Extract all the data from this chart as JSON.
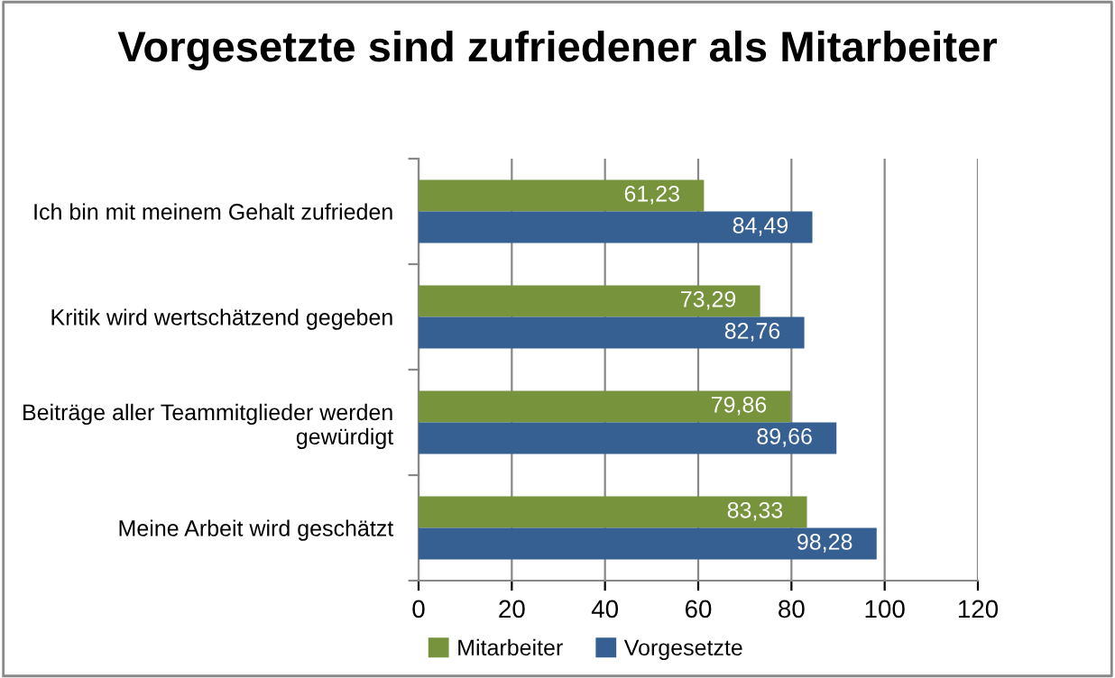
{
  "chart_data": {
    "type": "bar",
    "orientation": "horizontal",
    "title": "Vorgesetzte sind zufriedener als Mitarbeiter",
    "categories": [
      "Ich bin mit meinem Gehalt zufrieden",
      "Kritik wird wertschätzend gegeben",
      "Beiträge aller Teammitglieder werden\ngewürdigt",
      "Meine Arbeit wird geschätzt"
    ],
    "series": [
      {
        "name": "Mitarbeiter",
        "color": "#77933c",
        "values": [
          61.23,
          73.29,
          79.86,
          83.33
        ],
        "value_labels": [
          "61,23",
          "73,29",
          "79,86",
          "83,33"
        ]
      },
      {
        "name": "Vorgesetzte",
        "color": "#376092",
        "values": [
          84.49,
          82.76,
          89.66,
          98.28
        ],
        "value_labels": [
          "84,49",
          "82,76",
          "89,66",
          "98,28"
        ]
      }
    ],
    "xlim": [
      0,
      120
    ],
    "xticks": [
      0,
      20,
      40,
      60,
      80,
      100,
      120
    ],
    "grid": "x",
    "legend": "bottom"
  }
}
